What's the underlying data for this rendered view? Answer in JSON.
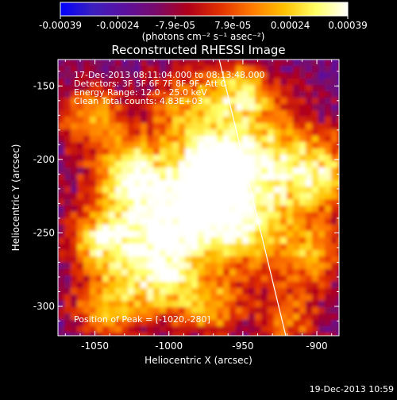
{
  "colorbar": {
    "tick_labels": [
      "-0.00039",
      "-0.00024",
      "-7.9e-05",
      "7.9e-05",
      "0.00024",
      "0.00039"
    ],
    "units_label": "(photons cm⁻² s⁻¹ asec⁻²)",
    "range": [
      -0.00039,
      0.00039
    ],
    "stops": [
      "#0000ff",
      "#3b1fbf",
      "#5b10a0",
      "#7a0a6a",
      "#b0001a",
      "#e23000",
      "#ff7a00",
      "#ffc000",
      "#ffff66",
      "#ffffff"
    ]
  },
  "plot": {
    "title": "Reconstructed RHESSI Image",
    "xlabel": "Heliocentric X (arcsec)",
    "ylabel": "Heliocentric Y (arcsec)",
    "x_ticks": [
      "-1050",
      "-1000",
      "-950",
      "-900"
    ],
    "y_ticks": [
      "-150",
      "-200",
      "-250",
      "-300"
    ],
    "x_tick_values": [
      -1050,
      -1000,
      -950,
      -900
    ],
    "y_tick_values": [
      -150,
      -200,
      -250,
      -300
    ],
    "xlim": [
      -1075,
      -885
    ],
    "ylim": [
      -320,
      -132
    ],
    "annotations": {
      "time_range": "17-Dec-2013 08:11:04.000 to 08:13:48.000",
      "detectors": "Detectors: 3F 5F 6F 7F 8F 9F, Att 0",
      "energy_range": "Energy Range: 12.0 - 25.0 keV",
      "clean": "Clean     Total counts: 4.83E+03",
      "peak": "Position of Peak = [-1020,-280]"
    },
    "limb_line": {
      "from": [
        -966,
        -132
      ],
      "to": [
        -921,
        -320
      ],
      "color": "#ffffff"
    }
  },
  "footer": {
    "timestamp": "19-Dec-2013 10:59"
  }
}
